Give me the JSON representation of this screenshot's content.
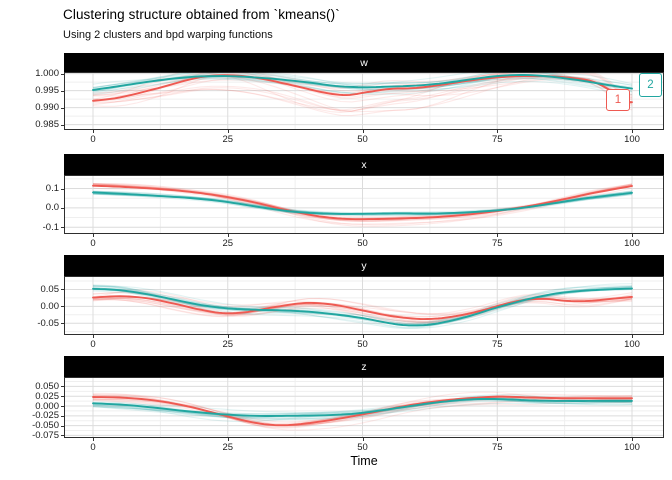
{
  "title": "Clustering structure obtained from `kmeans()`",
  "subtitle": "Using 2 clusters and bpd warping functions",
  "axis": {
    "x_label": "Time"
  },
  "legend": {
    "items": [
      {
        "label": "1",
        "color": "#EE5A52"
      },
      {
        "label": "2",
        "color": "#21A6A0"
      }
    ]
  },
  "colors": {
    "cluster1": "#EE5A52",
    "cluster2": "#21A6A0",
    "strip_bg": "#000000",
    "strip_text": "#FFFFFF",
    "grid_major": "#DCDCDC",
    "grid_minor": "#EFEFEF",
    "panel_border": "#2E2E2E"
  },
  "chart_data": {
    "type": "line",
    "title": "Clustering structure obtained from `kmeans()`",
    "subtitle": "Using 2 clusters and bpd warping functions",
    "xlabel": "Time",
    "ylabel": "",
    "x_range": [
      0,
      100
    ],
    "x_ticks": [
      {
        "label": "0",
        "value": 0
      },
      {
        "label": "25",
        "value": 25
      },
      {
        "label": "50",
        "value": 50
      },
      {
        "label": "75",
        "value": 75
      },
      {
        "label": "100",
        "value": 100
      }
    ],
    "x_minor": [
      12.5,
      37.5,
      62.5,
      87.5
    ],
    "grid": true,
    "legend_position": "direct-labels-right",
    "clusters": [
      {
        "id": "1",
        "color": "#EE5A52",
        "thin_alpha": 0.13
      },
      {
        "id": "2",
        "color": "#21A6A0",
        "thin_alpha": 0.13
      }
    ],
    "n_spaghetti_per_cluster": 14,
    "facets": [
      {
        "label": "w",
        "y_domain": [
          0.9837,
          1.0002
        ],
        "y_ticks": [
          {
            "label": "1.000",
            "value": 1.0
          },
          {
            "label": "0.995",
            "value": 0.995
          },
          {
            "label": "0.990",
            "value": 0.99
          },
          {
            "label": "0.985",
            "value": 0.985
          }
        ],
        "y_minor": [
          0.9975,
          0.9925,
          0.9875
        ],
        "spread": {
          "1": 0.0042,
          "2": 0.0026
        },
        "sag": {
          "1": 1.3,
          "2": 0.5
        },
        "series": [
          {
            "cluster": "1",
            "points": [
              [
                0,
                0.992
              ],
              [
                5,
                0.993
              ],
              [
                12,
                0.9957
              ],
              [
                18,
                0.9983
              ],
              [
                22,
                0.9994
              ],
              [
                27,
                0.9994
              ],
              [
                32,
                0.9983
              ],
              [
                38,
                0.9962
              ],
              [
                43,
                0.9944
              ],
              [
                47,
                0.9937
              ],
              [
                51,
                0.9946
              ],
              [
                55,
                0.9955
              ],
              [
                60,
                0.9958
              ],
              [
                65,
                0.9968
              ],
              [
                70,
                0.998
              ],
              [
                75,
                0.9989
              ],
              [
                80,
                0.9993
              ],
              [
                85,
                0.9992
              ],
              [
                90,
                0.9985
              ],
              [
                93,
                0.9975
              ],
              [
                96,
                0.995
              ],
              [
                98,
                0.992
              ],
              [
                100,
                0.9916
              ]
            ]
          },
          {
            "cluster": "2",
            "points": [
              [
                0,
                0.9952
              ],
              [
                6,
                0.9966
              ],
              [
                12,
                0.998
              ],
              [
                18,
                0.999
              ],
              [
                23,
                0.9993
              ],
              [
                28,
                0.9991
              ],
              [
                34,
                0.9984
              ],
              [
                40,
                0.9974
              ],
              [
                45,
                0.9964
              ],
              [
                50,
                0.996
              ],
              [
                55,
                0.9962
              ],
              [
                60,
                0.9965
              ],
              [
                65,
                0.9972
              ],
              [
                70,
                0.9983
              ],
              [
                75,
                0.9993
              ],
              [
                80,
                0.9996
              ],
              [
                85,
                0.9991
              ],
              [
                90,
                0.9981
              ],
              [
                95,
                0.9968
              ],
              [
                100,
                0.9956
              ]
            ]
          }
        ]
      },
      {
        "label": "x",
        "y_domain": [
          -0.13,
          0.165
        ],
        "y_ticks": [
          {
            "label": "0.1",
            "value": 0.1
          },
          {
            "label": "0.0",
            "value": 0.0
          },
          {
            "label": "-0.1",
            "value": -0.1
          }
        ],
        "y_minor": [
          0.15,
          0.05,
          -0.05
        ],
        "spread": {
          "1": 0.024,
          "2": 0.015
        },
        "sag": {
          "1": 0.8,
          "2": 0.3
        },
        "series": [
          {
            "cluster": "1",
            "points": [
              [
                0,
                0.115
              ],
              [
                6,
                0.108
              ],
              [
                12,
                0.098
              ],
              [
                18,
                0.083
              ],
              [
                24,
                0.06
              ],
              [
                30,
                0.028
              ],
              [
                36,
                -0.012
              ],
              [
                42,
                -0.044
              ],
              [
                47,
                -0.057
              ],
              [
                52,
                -0.058
              ],
              [
                58,
                -0.054
              ],
              [
                64,
                -0.047
              ],
              [
                70,
                -0.033
              ],
              [
                76,
                -0.012
              ],
              [
                82,
                0.015
              ],
              [
                88,
                0.048
              ],
              [
                93,
                0.078
              ],
              [
                100,
                0.113
              ]
            ]
          },
          {
            "cluster": "2",
            "points": [
              [
                0,
                0.08
              ],
              [
                6,
                0.072
              ],
              [
                12,
                0.062
              ],
              [
                18,
                0.051
              ],
              [
                24,
                0.034
              ],
              [
                30,
                0.008
              ],
              [
                36,
                -0.016
              ],
              [
                41,
                -0.027
              ],
              [
                46,
                -0.031
              ],
              [
                52,
                -0.03
              ],
              [
                57,
                -0.028
              ],
              [
                62,
                -0.029
              ],
              [
                67,
                -0.026
              ],
              [
                73,
                -0.017
              ],
              [
                79,
                -0.002
              ],
              [
                85,
                0.022
              ],
              [
                91,
                0.048
              ],
              [
                96,
                0.065
              ],
              [
                100,
                0.078
              ]
            ]
          }
        ]
      },
      {
        "label": "y",
        "y_domain": [
          -0.082,
          0.087
        ],
        "y_ticks": [
          {
            "label": "0.05",
            "value": 0.05
          },
          {
            "label": "0.00",
            "value": 0.0
          },
          {
            "label": "-0.05",
            "value": -0.05
          }
        ],
        "y_minor": [
          0.075,
          0.025,
          -0.025,
          -0.075
        ],
        "spread": {
          "1": 0.03,
          "2": 0.022
        },
        "sag": {
          "1": 0.3,
          "2": 0.3
        },
        "series": [
          {
            "cluster": "1",
            "points": [
              [
                0,
                0.026
              ],
              [
                5,
                0.03
              ],
              [
                10,
                0.024
              ],
              [
                15,
                0.008
              ],
              [
                20,
                -0.01
              ],
              [
                24,
                -0.02
              ],
              [
                28,
                -0.018
              ],
              [
                33,
                -0.004
              ],
              [
                38,
                0.008
              ],
              [
                41,
                0.01
              ],
              [
                45,
                0.004
              ],
              [
                50,
                -0.012
              ],
              [
                55,
                -0.028
              ],
              [
                60,
                -0.037
              ],
              [
                64,
                -0.036
              ],
              [
                68,
                -0.027
              ],
              [
                72,
                -0.013
              ],
              [
                76,
                0.005
              ],
              [
                80,
                0.019
              ],
              [
                84,
                0.022
              ],
              [
                88,
                0.016
              ],
              [
                92,
                0.016
              ],
              [
                96,
                0.022
              ],
              [
                100,
                0.028
              ]
            ]
          },
          {
            "cluster": "2",
            "points": [
              [
                0,
                0.052
              ],
              [
                5,
                0.048
              ],
              [
                10,
                0.036
              ],
              [
                15,
                0.02
              ],
              [
                20,
                0.004
              ],
              [
                25,
                -0.006
              ],
              [
                30,
                -0.01
              ],
              [
                35,
                -0.012
              ],
              [
                40,
                -0.016
              ],
              [
                45,
                -0.024
              ],
              [
                50,
                -0.035
              ],
              [
                55,
                -0.05
              ],
              [
                58,
                -0.056
              ],
              [
                62,
                -0.055
              ],
              [
                66,
                -0.044
              ],
              [
                70,
                -0.028
              ],
              [
                74,
                -0.008
              ],
              [
                78,
                0.01
              ],
              [
                82,
                0.026
              ],
              [
                86,
                0.038
              ],
              [
                90,
                0.045
              ],
              [
                95,
                0.05
              ],
              [
                100,
                0.053
              ]
            ]
          }
        ]
      },
      {
        "label": "z",
        "y_domain": [
          -0.079,
          0.0715
        ],
        "y_ticks": [
          {
            "label": "0.050",
            "value": 0.05
          },
          {
            "label": "0.025",
            "value": 0.025
          },
          {
            "label": "0.000",
            "value": 0.0
          },
          {
            "label": "-0.025",
            "value": -0.025
          },
          {
            "label": "-0.050",
            "value": -0.05
          },
          {
            "label": "-0.075",
            "value": -0.075
          }
        ],
        "y_minor": [
          0.0625,
          0.0375,
          0.0125,
          -0.0125,
          -0.0375,
          -0.0625
        ],
        "spread": {
          "1": 0.022,
          "2": 0.018
        },
        "sag": {
          "1": 0.5,
          "2": 0.3
        },
        "series": [
          {
            "cluster": "1",
            "points": [
              [
                0,
                0.023
              ],
              [
                6,
                0.021
              ],
              [
                12,
                0.013
              ],
              [
                18,
                -0.002
              ],
              [
                24,
                -0.023
              ],
              [
                29,
                -0.04
              ],
              [
                33,
                -0.048
              ],
              [
                37,
                -0.048
              ],
              [
                42,
                -0.04
              ],
              [
                47,
                -0.029
              ],
              [
                52,
                -0.016
              ],
              [
                57,
                -0.002
              ],
              [
                62,
                0.009
              ],
              [
                67,
                0.017
              ],
              [
                72,
                0.022
              ],
              [
                76,
                0.024
              ],
              [
                81,
                0.022
              ],
              [
                87,
                0.02
              ],
              [
                93,
                0.02
              ],
              [
                100,
                0.02
              ]
            ]
          },
          {
            "cluster": "2",
            "points": [
              [
                0,
                0.007
              ],
              [
                6,
                0.003
              ],
              [
                12,
                -0.005
              ],
              [
                18,
                -0.014
              ],
              [
                24,
                -0.021
              ],
              [
                30,
                -0.025
              ],
              [
                36,
                -0.025
              ],
              [
                42,
                -0.024
              ],
              [
                48,
                -0.02
              ],
              [
                53,
                -0.012
              ],
              [
                58,
                -0.002
              ],
              [
                63,
                0.008
              ],
              [
                68,
                0.015
              ],
              [
                72,
                0.018
              ],
              [
                77,
                0.017
              ],
              [
                82,
                0.014
              ],
              [
                88,
                0.013
              ],
              [
                94,
                0.013
              ],
              [
                100,
                0.013
              ]
            ]
          }
        ]
      }
    ]
  }
}
